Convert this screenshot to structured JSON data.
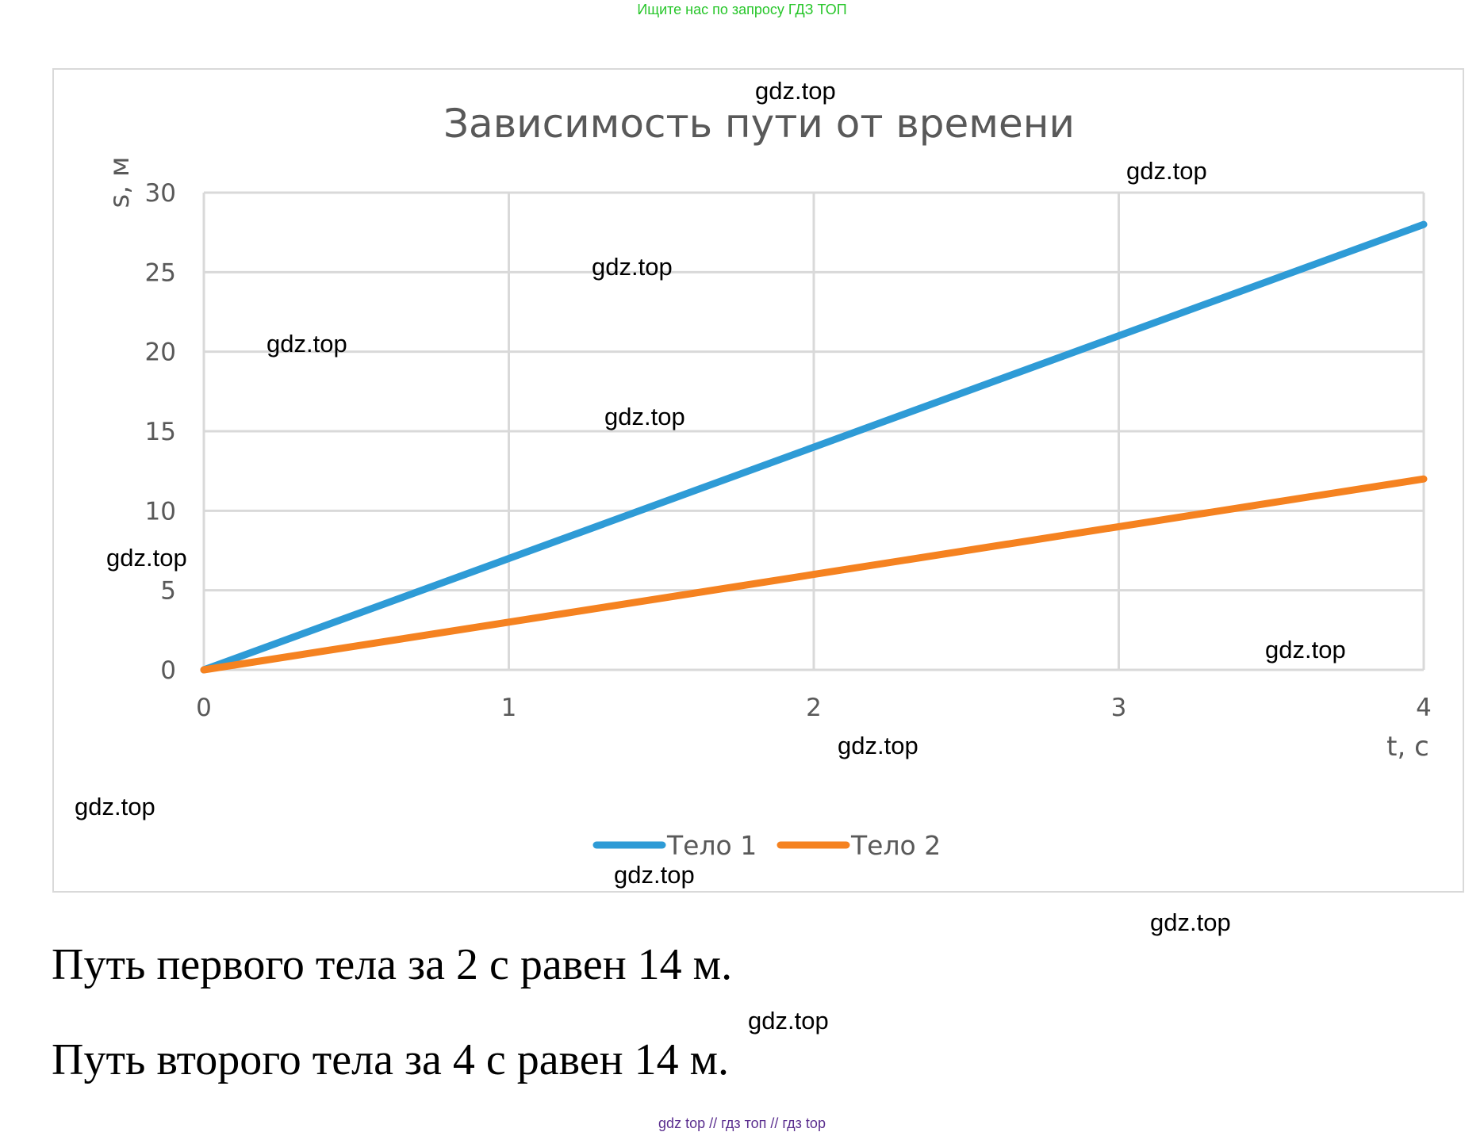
{
  "header": {
    "note": "Ищите нас по запросу ГДЗ ТОП"
  },
  "chart_data": {
    "type": "line",
    "title": "Зависимость пути от времени",
    "xlabel": "t, c",
    "ylabel": "s, м",
    "x": [
      0,
      1,
      2,
      3,
      4
    ],
    "xlim": [
      0,
      4
    ],
    "ylim": [
      0,
      30
    ],
    "xticks": [
      "0",
      "1",
      "2",
      "3",
      "4"
    ],
    "yticks": [
      "0",
      "5",
      "10",
      "15",
      "20",
      "25",
      "30"
    ],
    "grid": true,
    "legend_position": "bottom",
    "series": [
      {
        "name": "Тело 1",
        "color": "#2e9bd6",
        "values": [
          0,
          7,
          14,
          21,
          28
        ]
      },
      {
        "name": "Тело 2",
        "color": "#f58220",
        "values": [
          0,
          3,
          6,
          9,
          12
        ]
      }
    ]
  },
  "watermark_text": "gdz.top",
  "statements": [
    "Путь первого тела за 2 с равен 14 м.",
    "Путь второго тела за 4 с равен 14 м."
  ],
  "footer": {
    "note": "gdz top  //  гдз топ  //  гдз top"
  }
}
